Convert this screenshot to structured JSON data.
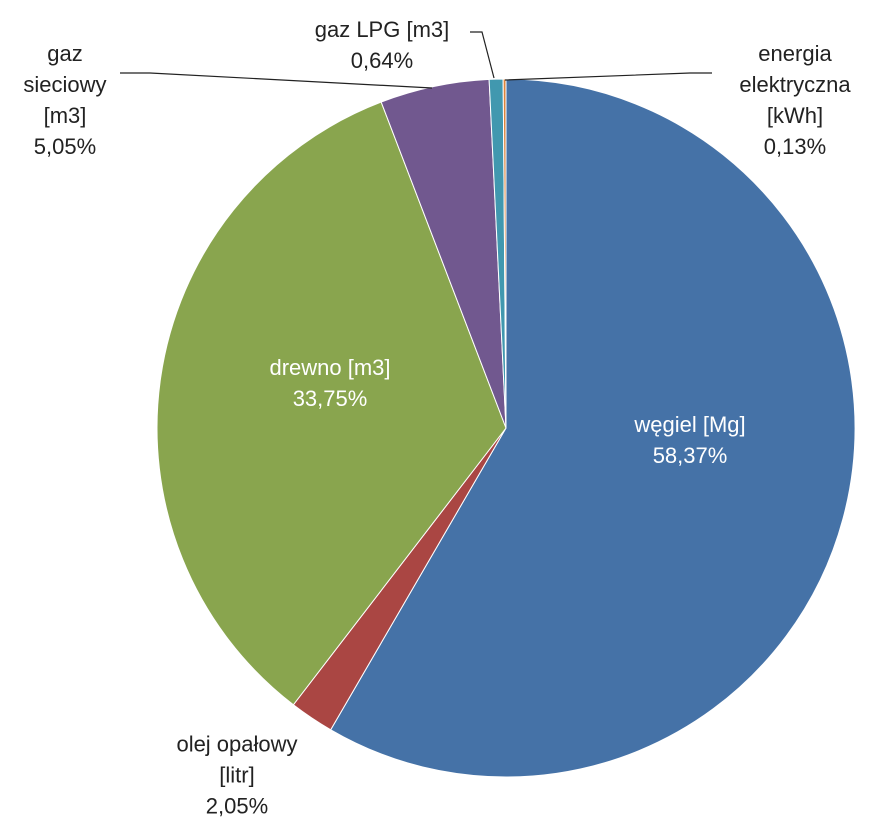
{
  "chart_data": {
    "type": "pie",
    "categories": [
      "węgiel [Mg]",
      "olej opałowy [litr]",
      "drewno [m3]",
      "gaz sieciowy [m3]",
      "gaz LPG [m3]",
      "energia elektryczna [kWh]"
    ],
    "values": [
      58.37,
      2.05,
      33.75,
      5.05,
      0.64,
      0.13
    ],
    "value_labels": [
      "58,37%",
      "2,05%",
      "33,75%",
      "5,05%",
      "0,64%",
      "0,13%"
    ],
    "colors": [
      "#4572a7",
      "#aa4643",
      "#89a54e",
      "#71588f",
      "#4198af",
      "#db843d"
    ]
  }
}
